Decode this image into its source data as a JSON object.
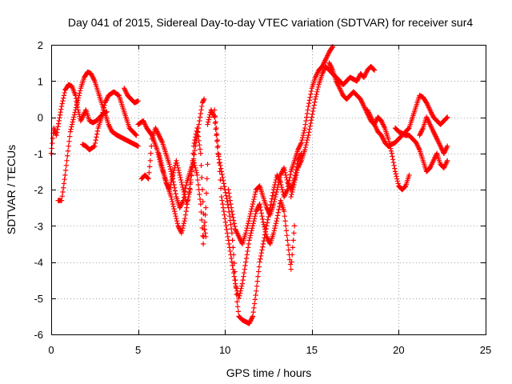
{
  "chart_data": {
    "type": "scatter",
    "title": "Day 041 of 2015, Sidereal Day-to-day VTEC variation (SDTVAR) for receiver sur4",
    "xlabel": "GPS time / hours",
    "ylabel": "SDTVAR / TECUs",
    "xlim": [
      0,
      25
    ],
    "ylim": [
      -6,
      2
    ],
    "xticks": [
      0,
      5,
      10,
      15,
      20,
      25
    ],
    "yticks": [
      -6,
      -5,
      -4,
      -3,
      -2,
      -1,
      0,
      1,
      2
    ],
    "grid": true,
    "marker": "+",
    "color": "#ff0000",
    "series": [
      {
        "name": "track-1",
        "points": [
          [
            0.0,
            -1.0
          ],
          [
            0.15,
            -0.3
          ],
          [
            0.3,
            -0.5
          ],
          [
            0.45,
            -0.1
          ],
          [
            0.6,
            0.3
          ],
          [
            0.8,
            0.75
          ],
          [
            1.0,
            0.9
          ],
          [
            1.2,
            0.85
          ],
          [
            1.4,
            0.6
          ],
          [
            1.55,
            0.2
          ],
          [
            1.7,
            -0.1
          ],
          [
            1.9,
            0.1
          ],
          [
            2.0,
            0.2
          ],
          [
            2.2,
            -0.1
          ],
          [
            2.4,
            -0.15
          ],
          [
            2.6,
            -0.1
          ],
          [
            2.8,
            0.0
          ],
          [
            3.0,
            0.1
          ],
          [
            3.2,
            0.15
          ]
        ]
      },
      {
        "name": "track-2",
        "points": [
          [
            0.4,
            -2.3
          ],
          [
            0.6,
            -2.3
          ],
          [
            0.8,
            -1.6
          ],
          [
            0.9,
            -1.2
          ],
          [
            1.0,
            -0.8
          ],
          [
            1.1,
            -0.4
          ],
          [
            1.3,
            0.0
          ],
          [
            1.5,
            0.4
          ],
          [
            1.7,
            0.8
          ],
          [
            1.9,
            1.1
          ],
          [
            2.1,
            1.25
          ],
          [
            2.3,
            1.2
          ],
          [
            2.5,
            1.0
          ],
          [
            2.7,
            0.7
          ],
          [
            2.9,
            0.4
          ],
          [
            3.1,
            0.1
          ],
          [
            3.3,
            -0.2
          ],
          [
            3.5,
            -0.4
          ],
          [
            3.8,
            -0.5
          ],
          [
            4.2,
            -0.6
          ],
          [
            4.6,
            -0.7
          ],
          [
            5.0,
            -0.8
          ]
        ]
      },
      {
        "name": "track-3",
        "points": [
          [
            1.8,
            -0.75
          ],
          [
            2.0,
            -0.8
          ],
          [
            2.2,
            -0.9
          ],
          [
            2.5,
            -0.8
          ],
          [
            2.7,
            -0.3
          ],
          [
            2.9,
            0.0
          ],
          [
            3.1,
            0.4
          ],
          [
            3.3,
            0.6
          ],
          [
            3.6,
            0.7
          ],
          [
            3.9,
            0.6
          ],
          [
            4.1,
            0.3
          ],
          [
            4.3,
            0.0
          ],
          [
            4.5,
            -0.3
          ],
          [
            4.7,
            -0.4
          ],
          [
            4.9,
            -0.5
          ]
        ]
      },
      {
        "name": "track-4",
        "points": [
          [
            4.2,
            0.8
          ],
          [
            4.4,
            0.6
          ],
          [
            4.6,
            0.5
          ],
          [
            4.8,
            0.4
          ],
          [
            5.0,
            0.45
          ]
        ]
      },
      {
        "name": "track-5",
        "points": [
          [
            5.2,
            -1.7
          ],
          [
            5.4,
            -1.6
          ],
          [
            5.6,
            -1.7
          ],
          [
            5.7,
            -1.2
          ],
          [
            5.8,
            -0.6
          ],
          [
            6.0,
            -0.3
          ],
          [
            6.2,
            -0.5
          ],
          [
            6.4,
            -0.7
          ],
          [
            6.6,
            -1.0
          ],
          [
            6.8,
            -1.3
          ],
          [
            7.0,
            -1.7
          ],
          [
            7.2,
            -2.2
          ],
          [
            7.4,
            -2.5
          ],
          [
            7.6,
            -2.3
          ],
          [
            7.8,
            -1.8
          ],
          [
            8.0,
            -1.5
          ],
          [
            8.2,
            -1.2
          ],
          [
            8.4,
            -1.6
          ],
          [
            8.6,
            -2.4
          ],
          [
            8.75,
            -3.5
          ],
          [
            8.9,
            -2.5
          ],
          [
            9.0,
            -1.3
          ]
        ]
      },
      {
        "name": "track-6",
        "points": [
          [
            5.0,
            -0.2
          ],
          [
            5.3,
            -0.1
          ],
          [
            5.5,
            -0.3
          ],
          [
            5.8,
            -0.5
          ],
          [
            6.1,
            -0.9
          ],
          [
            6.3,
            -1.3
          ],
          [
            6.5,
            -1.6
          ],
          [
            6.7,
            -1.9
          ],
          [
            6.9,
            -2.2
          ],
          [
            7.1,
            -2.6
          ],
          [
            7.3,
            -3.0
          ],
          [
            7.5,
            -3.2
          ],
          [
            7.7,
            -2.8
          ],
          [
            7.9,
            -2.2
          ],
          [
            8.1,
            -1.5
          ],
          [
            8.3,
            -0.8
          ],
          [
            8.5,
            -0.2
          ],
          [
            8.7,
            0.4
          ],
          [
            8.8,
            0.5
          ]
        ]
      },
      {
        "name": "track-7",
        "points": [
          [
            6.2,
            -1.0
          ],
          [
            6.4,
            -1.4
          ],
          [
            6.6,
            -1.8
          ],
          [
            6.8,
            -2.0
          ],
          [
            7.0,
            -1.6
          ],
          [
            7.2,
            -1.2
          ],
          [
            7.4,
            -1.6
          ],
          [
            7.6,
            -2.0
          ],
          [
            7.8,
            -2.4
          ],
          [
            8.0,
            -2.0
          ],
          [
            8.2,
            -0.8
          ],
          [
            8.4,
            -0.3
          ],
          [
            8.6,
            -1.0
          ],
          [
            8.7,
            -2.0
          ],
          [
            8.8,
            -3.0
          ],
          [
            8.9,
            -3.3
          ]
        ]
      },
      {
        "name": "track-8",
        "points": [
          [
            9.0,
            -0.2
          ],
          [
            9.2,
            0.2
          ],
          [
            9.4,
            0.0
          ],
          [
            9.5,
            -0.5
          ],
          [
            9.6,
            -1.0
          ],
          [
            9.8,
            -1.5
          ],
          [
            10.0,
            -2.0
          ],
          [
            10.2,
            -2.5
          ],
          [
            10.4,
            -3.2
          ],
          [
            10.5,
            -3.8
          ],
          [
            10.6,
            -4.5
          ],
          [
            10.7,
            -5.1
          ],
          [
            10.8,
            -5.5
          ],
          [
            11.0,
            -5.6
          ],
          [
            11.2,
            -5.65
          ],
          [
            11.4,
            -5.7
          ],
          [
            11.6,
            -5.5
          ],
          [
            11.8,
            -4.8
          ],
          [
            12.0,
            -4.0
          ],
          [
            12.2,
            -3.5
          ],
          [
            12.4,
            -3.0
          ],
          [
            12.6,
            -2.5
          ]
        ]
      },
      {
        "name": "track-9",
        "points": [
          [
            9.4,
            0.2
          ],
          [
            9.5,
            -0.3
          ],
          [
            9.6,
            -0.8
          ],
          [
            9.7,
            -1.5
          ],
          [
            9.8,
            -2.2
          ],
          [
            10.0,
            -2.8
          ],
          [
            10.2,
            -3.4
          ],
          [
            10.4,
            -4.0
          ],
          [
            10.6,
            -4.6
          ],
          [
            10.8,
            -5.0
          ],
          [
            11.0,
            -4.6
          ],
          [
            11.2,
            -4.0
          ],
          [
            11.4,
            -3.4
          ],
          [
            11.6,
            -3.0
          ],
          [
            11.8,
            -2.6
          ],
          [
            12.0,
            -2.4
          ],
          [
            12.2,
            -2.9
          ],
          [
            12.4,
            -3.3
          ],
          [
            12.6,
            -3.5
          ],
          [
            12.8,
            -3.2
          ],
          [
            13.0,
            -2.8
          ],
          [
            13.2,
            -2.3
          ],
          [
            13.4,
            -2.6
          ],
          [
            13.6,
            -3.4
          ],
          [
            13.8,
            -4.2
          ],
          [
            14.0,
            -3.0
          ]
        ]
      },
      {
        "name": "track-10",
        "points": [
          [
            10.2,
            -2.0
          ],
          [
            10.4,
            -2.6
          ],
          [
            10.6,
            -3.1
          ],
          [
            10.8,
            -3.3
          ],
          [
            11.0,
            -3.5
          ],
          [
            11.2,
            -3.2
          ],
          [
            11.4,
            -2.8
          ],
          [
            11.6,
            -2.4
          ],
          [
            11.8,
            -2.0
          ],
          [
            12.0,
            -1.9
          ],
          [
            12.2,
            -2.2
          ],
          [
            12.4,
            -2.5
          ],
          [
            12.6,
            -2.7
          ],
          [
            12.8,
            -2.4
          ],
          [
            13.0,
            -2.0
          ],
          [
            13.2,
            -1.6
          ],
          [
            13.4,
            -1.4
          ],
          [
            13.6,
            -1.8
          ],
          [
            13.8,
            -2.0
          ],
          [
            14.0,
            -1.7
          ],
          [
            14.2,
            -1.2
          ],
          [
            14.4,
            -1.0
          ]
        ]
      },
      {
        "name": "track-11",
        "points": [
          [
            12.6,
            -2.5
          ],
          [
            12.8,
            -2.0
          ],
          [
            13.0,
            -1.6
          ],
          [
            13.2,
            -1.8
          ],
          [
            13.4,
            -2.2
          ],
          [
            13.6,
            -2.0
          ],
          [
            13.8,
            -1.5
          ],
          [
            14.0,
            -1.2
          ],
          [
            14.2,
            -0.9
          ],
          [
            14.4,
            -0.7
          ],
          [
            14.6,
            -0.3
          ],
          [
            14.8,
            0.3
          ],
          [
            15.0,
            0.8
          ],
          [
            15.2,
            1.1
          ],
          [
            15.4,
            1.3
          ],
          [
            15.6,
            1.4
          ],
          [
            15.8,
            1.6
          ],
          [
            16.0,
            1.8
          ],
          [
            16.2,
            1.95
          ]
        ]
      },
      {
        "name": "track-12",
        "points": [
          [
            13.8,
            -2.2
          ],
          [
            14.0,
            -1.8
          ],
          [
            14.2,
            -1.4
          ],
          [
            14.4,
            -1.2
          ],
          [
            14.6,
            -0.9
          ],
          [
            14.8,
            -0.5
          ],
          [
            15.0,
            0.0
          ],
          [
            15.2,
            0.5
          ],
          [
            15.4,
            0.9
          ],
          [
            15.6,
            1.2
          ],
          [
            15.8,
            1.4
          ],
          [
            16.0,
            1.3
          ],
          [
            16.2,
            1.2
          ],
          [
            16.4,
            1.1
          ],
          [
            16.6,
            1.0
          ],
          [
            16.8,
            0.9
          ],
          [
            17.0,
            1.0
          ],
          [
            17.2,
            1.1
          ],
          [
            17.4,
            1.05
          ],
          [
            17.6,
            1.0
          ],
          [
            17.8,
            1.2
          ],
          [
            18.0,
            1.1
          ],
          [
            18.2,
            1.3
          ],
          [
            18.4,
            1.4
          ],
          [
            18.6,
            1.3
          ]
        ]
      },
      {
        "name": "track-13",
        "points": [
          [
            16.0,
            1.5
          ],
          [
            16.2,
            1.3
          ],
          [
            16.4,
            1.0
          ],
          [
            16.6,
            0.8
          ],
          [
            16.8,
            0.6
          ],
          [
            17.0,
            0.5
          ],
          [
            17.2,
            0.6
          ],
          [
            17.4,
            0.7
          ],
          [
            17.6,
            0.6
          ],
          [
            17.8,
            0.5
          ],
          [
            18.0,
            0.3
          ],
          [
            18.2,
            0.1
          ],
          [
            18.4,
            -0.1
          ],
          [
            18.6,
            -0.2
          ],
          [
            18.8,
            0.0
          ],
          [
            19.0,
            -0.1
          ],
          [
            19.2,
            -0.3
          ],
          [
            19.4,
            -0.6
          ],
          [
            19.6,
            -1.0
          ],
          [
            19.8,
            -1.5
          ],
          [
            20.0,
            -1.9
          ],
          [
            20.2,
            -2.0
          ],
          [
            20.4,
            -1.9
          ],
          [
            20.6,
            -1.6
          ]
        ]
      },
      {
        "name": "track-14",
        "points": [
          [
            18.2,
            0.2
          ],
          [
            18.4,
            0.0
          ],
          [
            18.6,
            -0.2
          ],
          [
            18.8,
            -0.4
          ],
          [
            19.0,
            -0.5
          ],
          [
            19.2,
            -0.7
          ],
          [
            19.4,
            -0.8
          ],
          [
            19.6,
            -0.75
          ],
          [
            19.8,
            -0.7
          ],
          [
            20.0,
            -0.6
          ],
          [
            20.2,
            -0.5
          ],
          [
            20.4,
            -0.4
          ],
          [
            20.6,
            -0.3
          ],
          [
            20.8,
            0.0
          ],
          [
            21.0,
            0.3
          ],
          [
            21.2,
            0.6
          ],
          [
            21.4,
            0.55
          ],
          [
            21.6,
            0.4
          ],
          [
            21.8,
            0.2
          ],
          [
            22.0,
            0.0
          ],
          [
            22.2,
            -0.1
          ],
          [
            22.4,
            -0.2
          ],
          [
            22.6,
            -0.1
          ],
          [
            22.8,
            0.0
          ]
        ]
      },
      {
        "name": "track-15",
        "points": [
          [
            19.8,
            -0.3
          ],
          [
            20.0,
            -0.4
          ],
          [
            20.2,
            -0.45
          ],
          [
            20.4,
            -0.5
          ],
          [
            20.6,
            -0.5
          ],
          [
            20.8,
            -0.6
          ],
          [
            21.0,
            -0.7
          ],
          [
            21.2,
            -0.9
          ],
          [
            21.4,
            -1.2
          ],
          [
            21.6,
            -1.5
          ],
          [
            21.8,
            -1.4
          ],
          [
            22.0,
            -1.2
          ],
          [
            22.2,
            -1.0
          ],
          [
            22.4,
            -1.3
          ],
          [
            22.6,
            -1.4
          ],
          [
            22.8,
            -1.2
          ]
        ]
      },
      {
        "name": "track-16",
        "points": [
          [
            21.2,
            -0.5
          ],
          [
            21.4,
            -0.3
          ],
          [
            21.6,
            0.0
          ],
          [
            21.8,
            -0.2
          ],
          [
            22.0,
            -0.4
          ],
          [
            22.2,
            -0.6
          ],
          [
            22.4,
            -0.8
          ],
          [
            22.6,
            -1.0
          ],
          [
            22.8,
            -0.8
          ]
        ]
      }
    ]
  }
}
